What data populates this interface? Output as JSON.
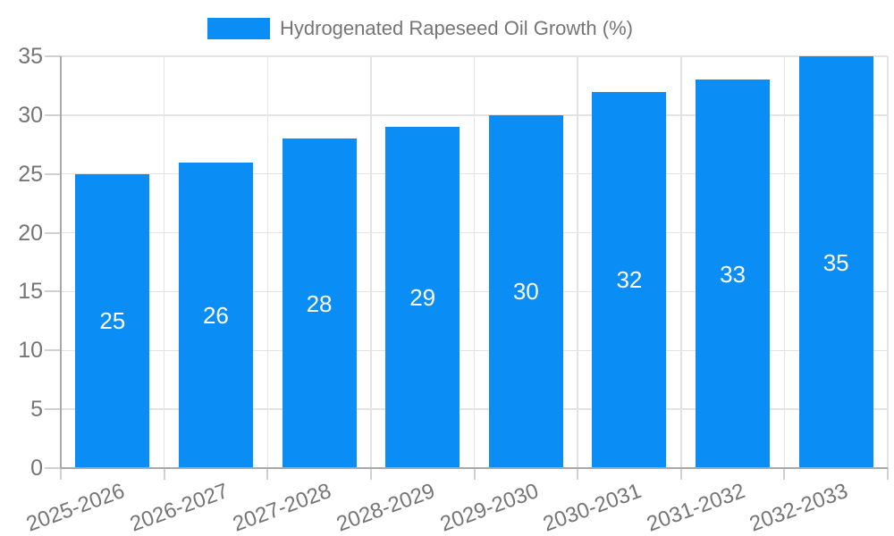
{
  "colors": {
    "bar": "#0a8df4",
    "axis_text": "#757575",
    "legend_text": "#757575",
    "value_label": "#ffffff",
    "gridline": "#e3e3e3",
    "tick": "#d0d0d0",
    "axis_line": "#a8a8a8",
    "background": "#ffffff"
  },
  "chart_data": {
    "type": "bar",
    "categories": [
      "2025-2026",
      "2026-2027",
      "2027-2028",
      "2028-2029",
      "2029-2030",
      "2030-2031",
      "2031-2032",
      "2032-2033"
    ],
    "series": [
      {
        "name": "Hydrogenated Rapeseed Oil Growth (%)",
        "values": [
          25,
          26,
          28,
          29,
          30,
          32,
          33,
          35
        ]
      }
    ],
    "title": "",
    "xlabel": "",
    "ylabel": "",
    "ylim": [
      0,
      35
    ],
    "yticks": [
      0,
      5,
      10,
      15,
      20,
      25,
      30,
      35
    ],
    "grid": true,
    "legend_position": "top",
    "bar_value_labels": true,
    "x_label_rotation_deg": -20
  }
}
